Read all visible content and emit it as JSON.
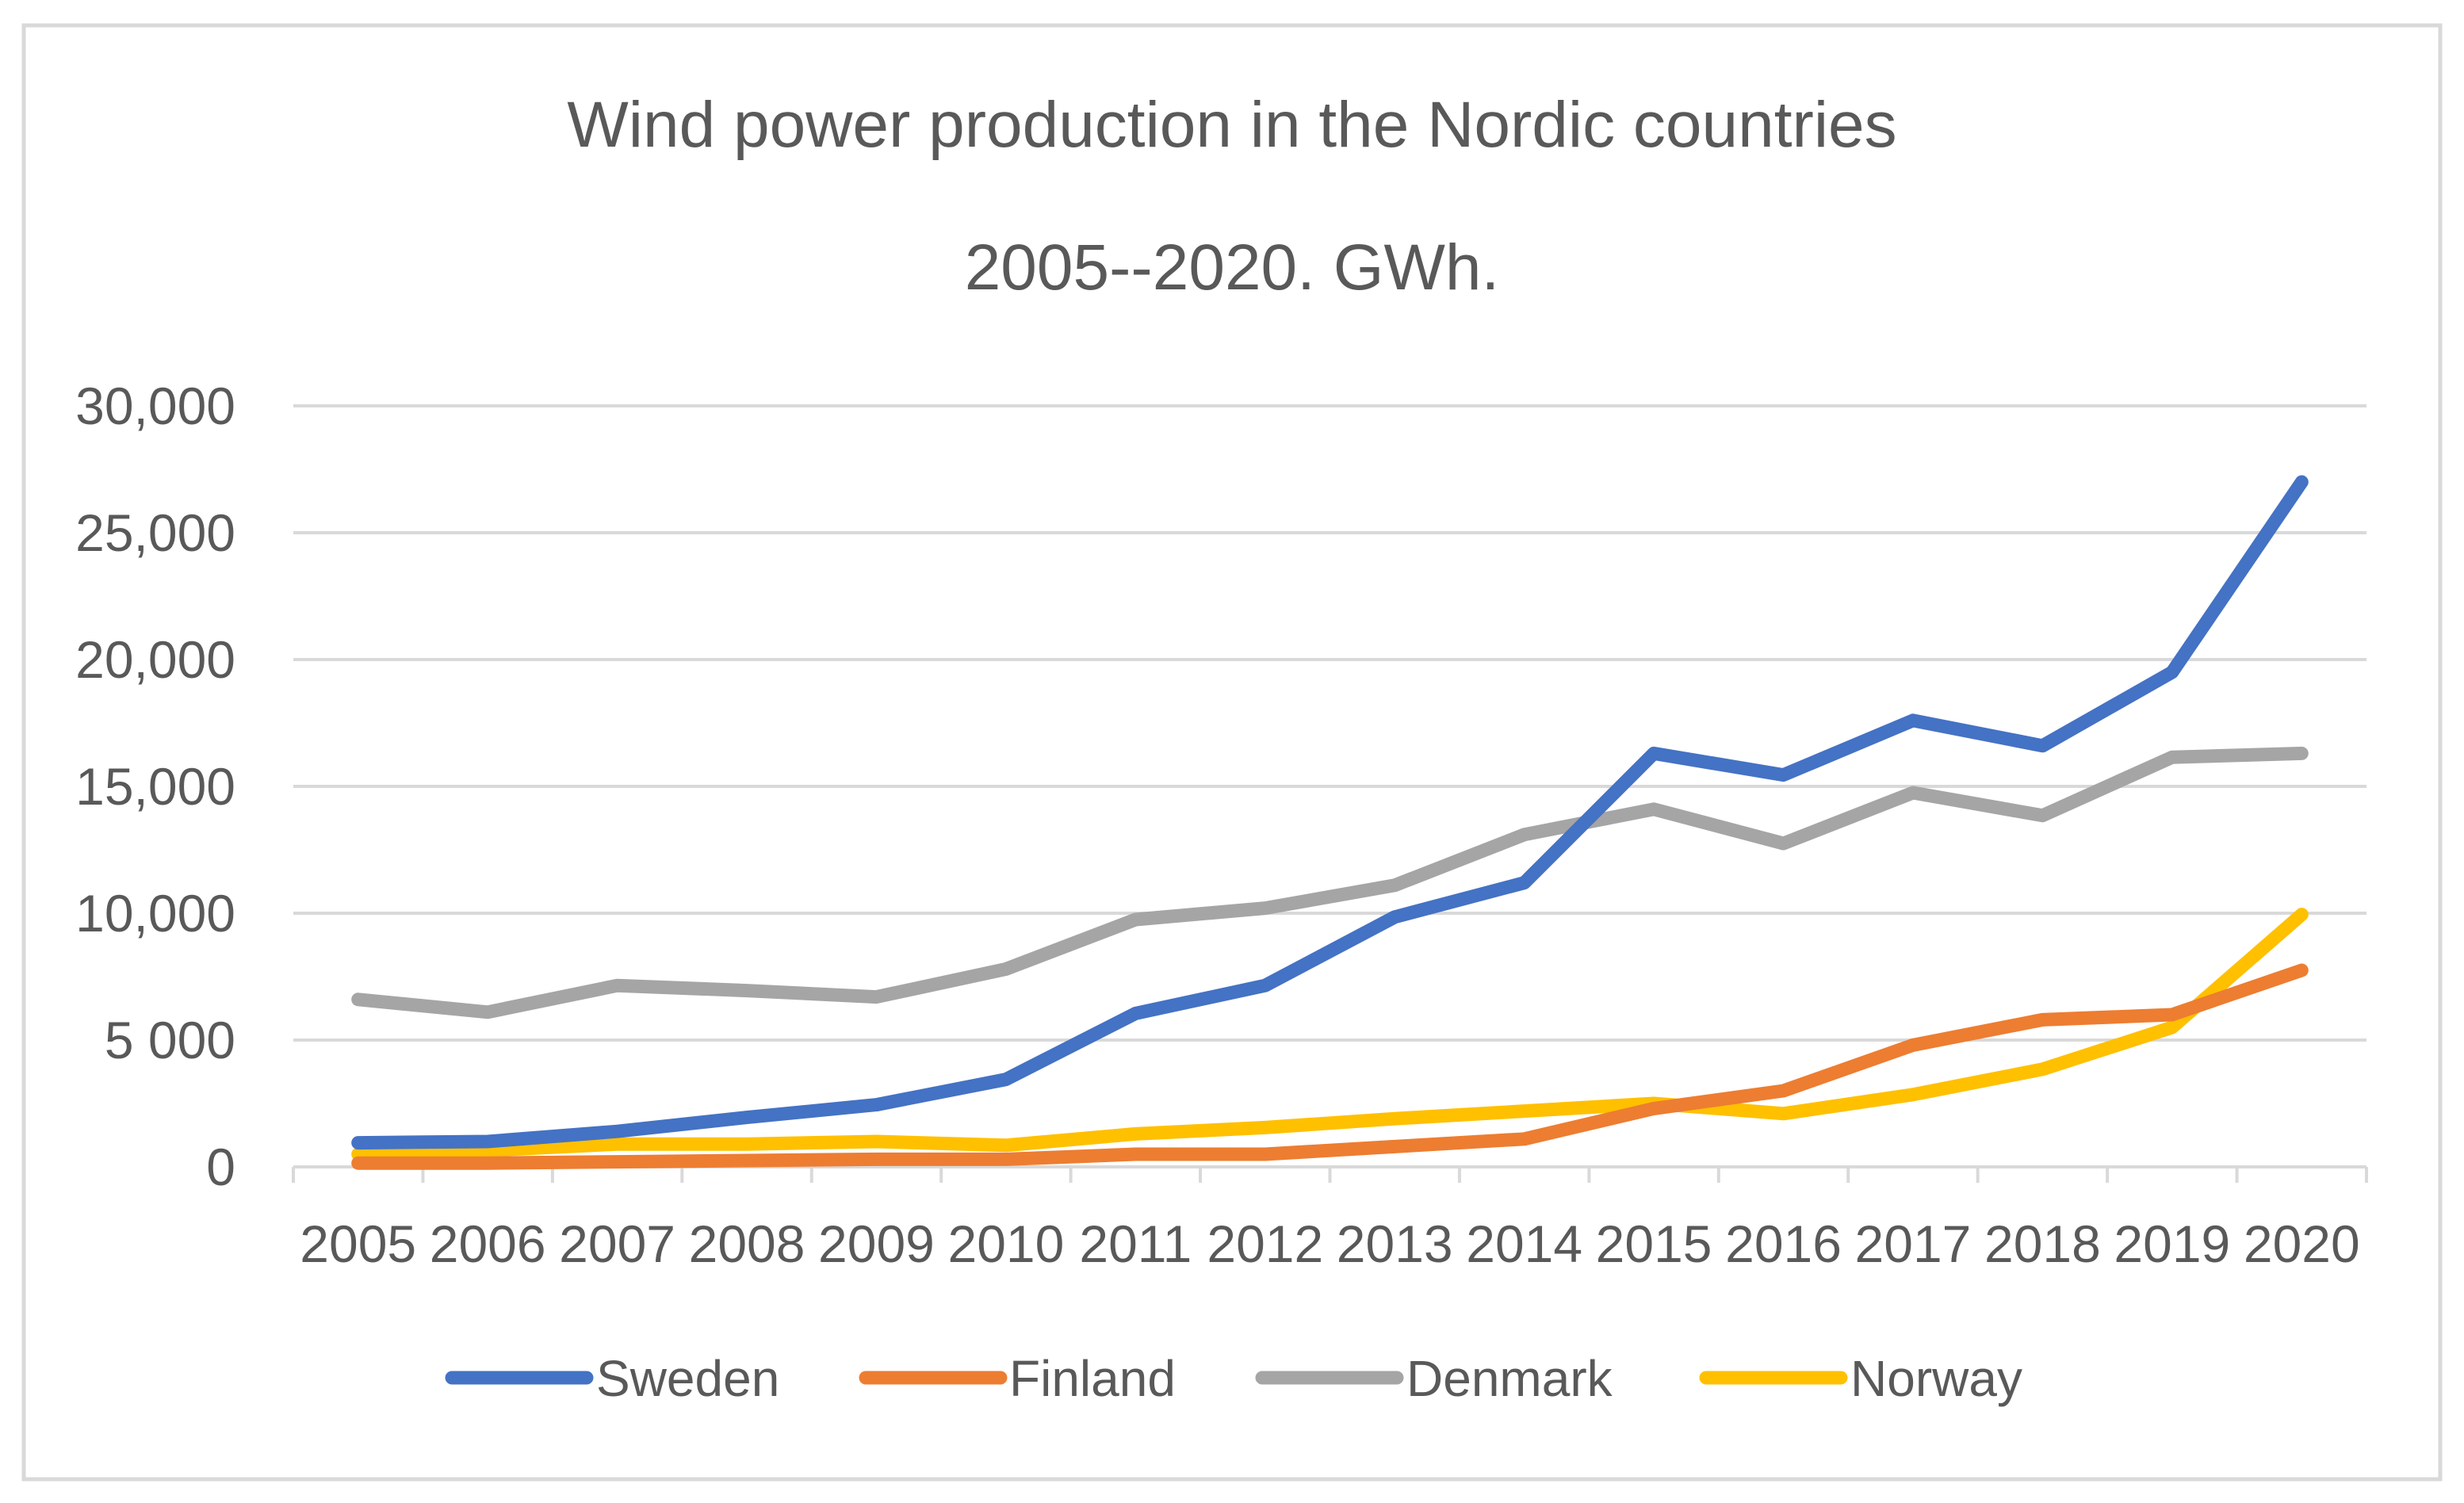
{
  "chart_data": {
    "type": "line",
    "title_line1": "Wind power production in the Nordic countries",
    "title_line2": "2005--2020. GWh.",
    "xlabel": "",
    "ylabel": "",
    "ylim": [
      0,
      30000
    ],
    "grid": true,
    "legend_position": "bottom",
    "y_ticks": [
      {
        "value": 0,
        "label": "0"
      },
      {
        "value": 5000,
        "label": "5 000"
      },
      {
        "value": 10000,
        "label": "10,000"
      },
      {
        "value": 15000,
        "label": "15,000"
      },
      {
        "value": 20000,
        "label": "20,000"
      },
      {
        "value": 25000,
        "label": "25,000"
      },
      {
        "value": 30000,
        "label": "30,000"
      }
    ],
    "categories": [
      "2005",
      "2006",
      "2007",
      "2008",
      "2009",
      "2010",
      "2011",
      "2012",
      "2013",
      "2014",
      "2015",
      "2016",
      "2017",
      "2018",
      "2019",
      "2020"
    ],
    "series": [
      {
        "name": "Sweden",
        "color": "#4472C4",
        "values": [
          950,
          1000,
          1400,
          1950,
          2450,
          3450,
          6050,
          7150,
          9850,
          11200,
          16300,
          15450,
          17600,
          16600,
          19500,
          27000
        ]
      },
      {
        "name": "Finland",
        "color": "#ED7D31",
        "values": [
          150,
          150,
          200,
          250,
          300,
          300,
          500,
          500,
          800,
          1100,
          2300,
          3000,
          4800,
          5800,
          6000,
          7750
        ]
      },
      {
        "name": "Denmark",
        "color": "#A5A5A5",
        "values": [
          6600,
          6100,
          7150,
          6950,
          6700,
          7800,
          9750,
          10200,
          11100,
          13100,
          14100,
          12750,
          14750,
          13850,
          16150,
          16300
        ]
      },
      {
        "name": "Norway",
        "color": "#FFC000",
        "values": [
          500,
          650,
          900,
          900,
          1000,
          850,
          1300,
          1550,
          1900,
          2200,
          2500,
          2100,
          2850,
          3850,
          5500,
          9950
        ]
      }
    ]
  }
}
